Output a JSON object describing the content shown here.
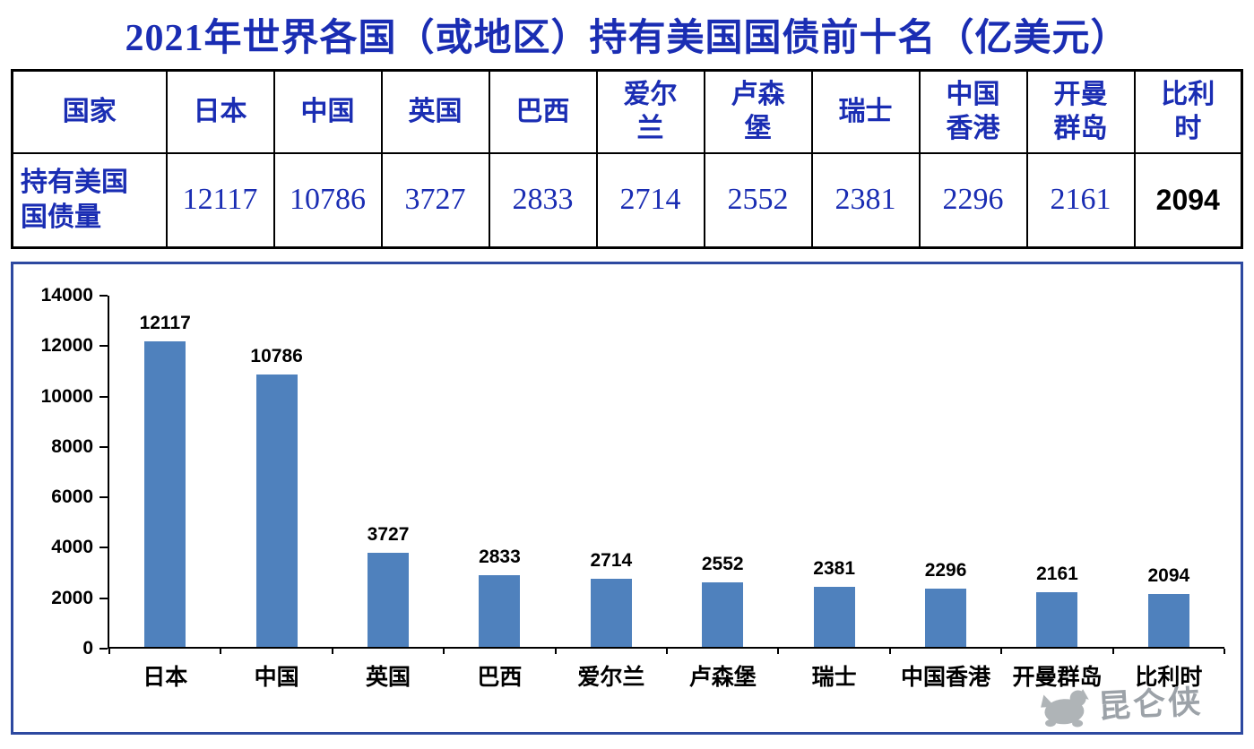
{
  "title": "2021年世界各国（或地区）持有美国国债前十名（亿美元）",
  "colors": {
    "text_navy": "#1a2db3",
    "chart_border": "#2d49a0",
    "bar_blue": "#4f81bd",
    "axis_black": "#000000",
    "watermark_grey": "#8f969d"
  },
  "table": {
    "corner_label": "国家",
    "row_label": "持有美国\n国债量",
    "columns": [
      "日本",
      "中国",
      "英国",
      "巴西",
      "爱尔\n兰",
      "卢森\n堡",
      "瑞士",
      "中国\n香港",
      "开曼\n群岛",
      "比利\n时"
    ],
    "values": [
      "12117",
      "10786",
      "3727",
      "2833",
      "2714",
      "2552",
      "2381",
      "2296",
      "2161",
      "2094"
    ],
    "emphasized_index": 9
  },
  "chart_data": {
    "type": "bar",
    "title": "2021年世界各国（或地区）持有美国国债前十名（亿美元）",
    "categories": [
      "日本",
      "中国",
      "英国",
      "巴西",
      "爱尔兰",
      "卢森堡",
      "瑞士",
      "中国香港",
      "开曼群岛",
      "比利时"
    ],
    "values": [
      12117,
      10786,
      3727,
      2833,
      2714,
      2552,
      2381,
      2296,
      2161,
      2094
    ],
    "xlabel": "",
    "ylabel": "",
    "ylim": [
      0,
      14000
    ],
    "yticks": [
      0,
      2000,
      4000,
      6000,
      8000,
      10000,
      12000,
      14000
    ],
    "grid": false,
    "legend": "none",
    "data_labels": true,
    "bar_color": "#4f81bd"
  },
  "watermark": "昆仑侠"
}
